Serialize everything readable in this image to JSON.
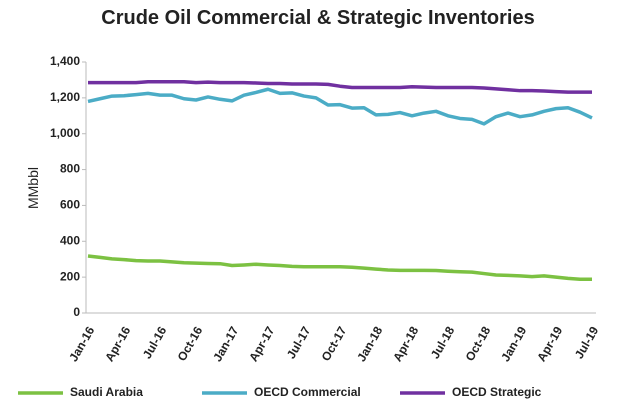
{
  "chart_data": {
    "type": "line",
    "title": "Crude Oil Commercial & Strategic Inventories",
    "ylabel": "MMbbl",
    "categories": [
      "Jan-16",
      null,
      null,
      "Apr-16",
      null,
      null,
      "Jul-16",
      null,
      null,
      "Oct-16",
      null,
      null,
      "Jan-17",
      null,
      null,
      "Apr-17",
      null,
      null,
      "Jul-17",
      null,
      null,
      "Oct-17",
      null,
      null,
      "Jan-18",
      null,
      null,
      "Apr-18",
      null,
      null,
      "Jul-18",
      null,
      null,
      "Oct-18",
      null,
      null,
      "Jan-19",
      null,
      null,
      "Apr-19",
      null,
      null,
      "Jul-19"
    ],
    "series": [
      {
        "name": "Saudi Arabia",
        "color": "#7cc142",
        "values": [
          318,
          310,
          302,
          298,
          292,
          290,
          290,
          285,
          280,
          278,
          276,
          275,
          265,
          268,
          272,
          268,
          265,
          260,
          258,
          258,
          258,
          258,
          255,
          250,
          245,
          240,
          238,
          238,
          238,
          237,
          233,
          230,
          228,
          220,
          212,
          210,
          207,
          203,
          207,
          200,
          193,
          188,
          188
        ]
      },
      {
        "name": "OECD Commercial",
        "color": "#4bacc6",
        "values": [
          1180,
          1195,
          1210,
          1212,
          1218,
          1225,
          1215,
          1215,
          1195,
          1188,
          1205,
          1192,
          1183,
          1215,
          1230,
          1248,
          1225,
          1228,
          1210,
          1200,
          1160,
          1162,
          1143,
          1145,
          1105,
          1108,
          1118,
          1100,
          1115,
          1125,
          1100,
          1085,
          1080,
          1055,
          1095,
          1115,
          1095,
          1105,
          1125,
          1140,
          1145,
          1120,
          1088
        ]
      },
      {
        "name": "OECD Strategic",
        "color": "#7030a0",
        "values": [
          1285,
          1285,
          1285,
          1285,
          1285,
          1290,
          1290,
          1290,
          1290,
          1285,
          1288,
          1285,
          1285,
          1285,
          1283,
          1280,
          1280,
          1277,
          1277,
          1277,
          1275,
          1265,
          1258,
          1258,
          1258,
          1258,
          1258,
          1262,
          1260,
          1258,
          1258,
          1258,
          1258,
          1255,
          1250,
          1245,
          1240,
          1240,
          1238,
          1235,
          1232,
          1232,
          1232
        ]
      }
    ],
    "ylim": [
      0,
      1400
    ],
    "yticks": [
      0,
      200,
      400,
      600,
      800,
      {
        "value": 1000,
        "label": "1,000"
      },
      {
        "value": 1200,
        "label": "1,200"
      },
      {
        "value": 1400,
        "label": "1,400"
      }
    ],
    "legend": "bottom"
  }
}
